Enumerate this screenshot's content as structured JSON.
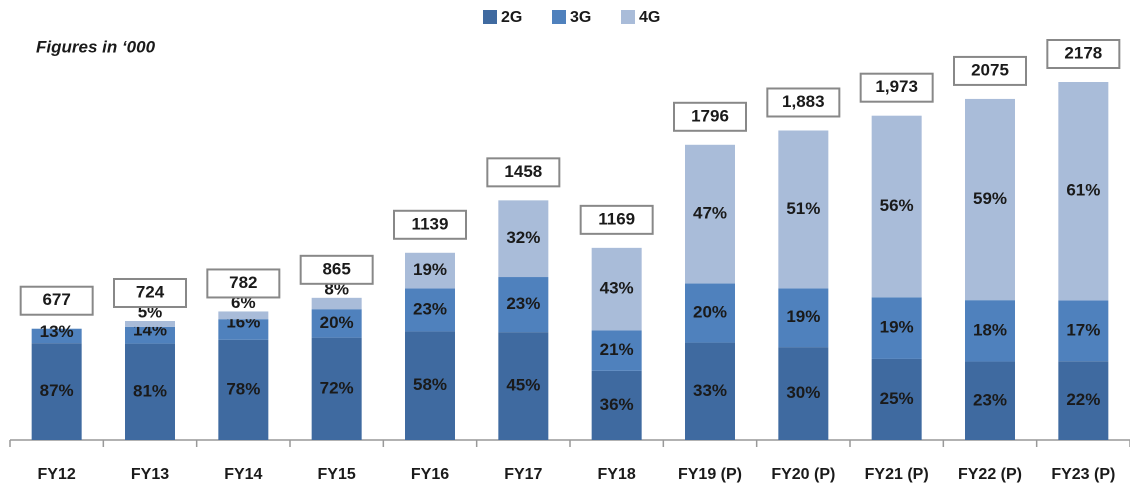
{
  "chart_data": {
    "type": "stacked_bar",
    "subtitle": "Figures in ‘000",
    "categories": [
      "FY12",
      "FY13",
      "FY14",
      "FY15",
      "FY16",
      "FY17",
      "FY18",
      "FY19 (P)",
      "FY20 (P)",
      "FY21 (P)",
      "FY22 (P)",
      "FY23 (P)"
    ],
    "series": [
      {
        "name": "2G",
        "color": "#3f6aa0",
        "values": [
          87,
          81,
          78,
          72,
          58,
          45,
          36,
          33,
          30,
          25,
          23,
          22
        ],
        "value_labels": [
          "87%",
          "81%",
          "78%",
          "72%",
          "58%",
          "45%",
          "36%",
          "33%",
          "30%",
          "25%",
          "23%",
          "22%"
        ]
      },
      {
        "name": "3G",
        "color": "#4f81bd",
        "values": [
          13,
          14,
          16,
          20,
          23,
          23,
          21,
          20,
          19,
          19,
          18,
          17
        ],
        "value_labels": [
          "13%",
          "14%",
          "16%",
          "20%",
          "23%",
          "23%",
          "21%",
          "20%",
          "19%",
          "19%",
          "18%",
          "17%"
        ]
      },
      {
        "name": "4G",
        "color": "#a9bcd9",
        "values": [
          null,
          5,
          6,
          8,
          19,
          32,
          43,
          47,
          51,
          56,
          59,
          61
        ],
        "value_labels": [
          null,
          "5%",
          "6%",
          "8%",
          "19%",
          "32%",
          "43%",
          "47%",
          "51%",
          "56%",
          "59%",
          "61%"
        ]
      }
    ],
    "totals": {
      "values": [
        677,
        724,
        782,
        865,
        1139,
        1458,
        1169,
        1796,
        1883,
        1973,
        2075,
        2178
      ],
      "value_labels": [
        "677",
        "724",
        "782",
        "865",
        "1139",
        "1458",
        "1169",
        "1796",
        "1,883",
        "1,973",
        "2075",
        "2178"
      ]
    },
    "legend": "top"
  }
}
